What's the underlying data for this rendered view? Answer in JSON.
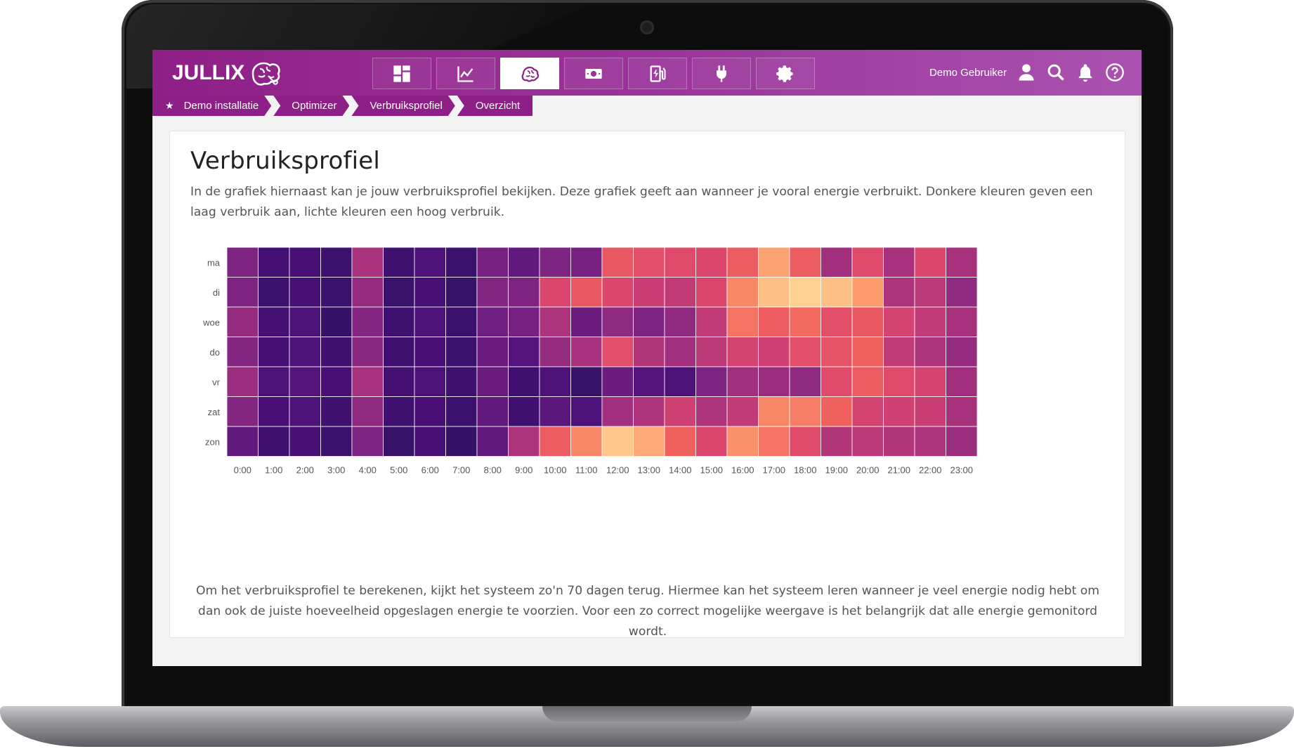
{
  "app": {
    "logo_text": "JULLIX",
    "brand_color": "#8e1f86",
    "nav_tabs": [
      {
        "icon": "dashboard-icon",
        "active": false
      },
      {
        "icon": "chart-line-icon",
        "active": false
      },
      {
        "icon": "brain-icon",
        "active": true
      },
      {
        "icon": "money-icon",
        "active": false
      },
      {
        "icon": "charging-station-icon",
        "active": false
      },
      {
        "icon": "plug-icon",
        "active": false
      },
      {
        "icon": "gear-icon",
        "active": false
      }
    ],
    "user_name": "Demo Gebruiker",
    "header_icons": [
      "user-icon",
      "search-icon",
      "bell-icon",
      "help-icon"
    ]
  },
  "breadcrumb": [
    "Demo installatie",
    "Optimizer",
    "Verbruiksprofiel",
    "Overzicht"
  ],
  "page": {
    "title": "Verbruiksprofiel",
    "description": "In de grafiek hiernaast kan je jouw verbruiksprofiel bekijken. Deze grafiek geeft aan wanneer je vooral energie verbruikt. Donkere kleuren geven een laag verbruik aan, lichte kleuren een hoog verbruik.",
    "footer": "Om het verbruiksprofiel te berekenen, kijkt het systeem zo'n 70 dagen terug. Hiermee kan het systeem leren wanneer je veel energie nodig hebt om dan ook de juiste hoeveelheid opgeslagen energie te voorzien. Voor een zo correct mogelijke weergave is het belangrijk dat alle energie gemonitord wordt."
  },
  "chart_data": {
    "type": "heatmap",
    "title": "",
    "xlabel": "",
    "ylabel": "",
    "x": [
      "0:00",
      "1:00",
      "2:00",
      "3:00",
      "4:00",
      "5:00",
      "6:00",
      "7:00",
      "8:00",
      "9:00",
      "10:00",
      "11:00",
      "12:00",
      "13:00",
      "14:00",
      "15:00",
      "16:00",
      "17:00",
      "18:00",
      "19:00",
      "20:00",
      "21:00",
      "22:00",
      "23:00"
    ],
    "y": [
      "ma",
      "di",
      "woe",
      "do",
      "vr",
      "zat",
      "zon"
    ],
    "scale": "low = dark purple, high = light orange/yellow",
    "values": [
      [
        0.3,
        0.12,
        0.14,
        0.08,
        0.45,
        0.1,
        0.16,
        0.08,
        0.28,
        0.22,
        0.3,
        0.28,
        0.68,
        0.64,
        0.62,
        0.6,
        0.7,
        0.86,
        0.7,
        0.42,
        0.62,
        0.44,
        0.6,
        0.44
      ],
      [
        0.3,
        0.08,
        0.14,
        0.08,
        0.38,
        0.07,
        0.14,
        0.06,
        0.32,
        0.3,
        0.6,
        0.68,
        0.6,
        0.54,
        0.52,
        0.6,
        0.8,
        0.94,
        0.98,
        0.94,
        0.84,
        0.46,
        0.5,
        0.36
      ],
      [
        0.38,
        0.12,
        0.16,
        0.05,
        0.32,
        0.09,
        0.16,
        0.08,
        0.26,
        0.28,
        0.46,
        0.24,
        0.36,
        0.3,
        0.36,
        0.52,
        0.76,
        0.7,
        0.74,
        0.64,
        0.68,
        0.58,
        0.52,
        0.44
      ],
      [
        0.32,
        0.12,
        0.16,
        0.1,
        0.34,
        0.1,
        0.14,
        0.08,
        0.24,
        0.18,
        0.38,
        0.44,
        0.64,
        0.48,
        0.42,
        0.5,
        0.58,
        0.56,
        0.64,
        0.66,
        0.72,
        0.52,
        0.46,
        0.38
      ],
      [
        0.4,
        0.16,
        0.18,
        0.14,
        0.44,
        0.12,
        0.16,
        0.1,
        0.24,
        0.1,
        0.16,
        0.06,
        0.24,
        0.18,
        0.16,
        0.3,
        0.42,
        0.4,
        0.36,
        0.62,
        0.7,
        0.62,
        0.58,
        0.42
      ],
      [
        0.32,
        0.14,
        0.16,
        0.1,
        0.36,
        0.1,
        0.14,
        0.08,
        0.22,
        0.1,
        0.2,
        0.16,
        0.42,
        0.46,
        0.56,
        0.46,
        0.52,
        0.8,
        0.78,
        0.72,
        0.58,
        0.56,
        0.54,
        0.44
      ],
      [
        0.22,
        0.1,
        0.14,
        0.08,
        0.3,
        0.06,
        0.14,
        0.04,
        0.22,
        0.46,
        0.7,
        0.8,
        0.96,
        0.88,
        0.72,
        0.6,
        0.82,
        0.76,
        0.62,
        0.48,
        0.5,
        0.48,
        0.46,
        0.4
      ]
    ]
  }
}
